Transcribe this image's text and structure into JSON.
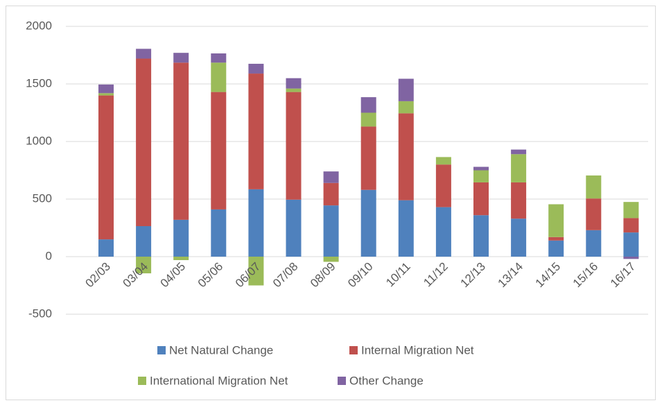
{
  "chart_data": {
    "type": "stacked-bar",
    "categories": [
      "02/03",
      "03/04",
      "04/05",
      "05/06",
      "06/07",
      "07/08",
      "08/09",
      "09/10",
      "10/11",
      "11/12",
      "12/13",
      "13/14",
      "14/15",
      "15/16",
      "16/17"
    ],
    "series": [
      {
        "name": "Net Natural Change",
        "color": "#4f81bd",
        "values": [
          150,
          265,
          320,
          410,
          585,
          495,
          445,
          580,
          490,
          430,
          360,
          330,
          140,
          230,
          210
        ]
      },
      {
        "name": "Internal Migration Net",
        "color": "#c0504d",
        "values": [
          1250,
          1455,
          1365,
          1020,
          1005,
          935,
          195,
          550,
          755,
          370,
          285,
          315,
          30,
          275,
          125
        ]
      },
      {
        "name": "International Migration Net",
        "color": "#9bbb59",
        "values": [
          20,
          -145,
          -30,
          255,
          -250,
          30,
          -45,
          120,
          105,
          65,
          105,
          245,
          285,
          200,
          140
        ]
      },
      {
        "name": "Other Change",
        "color": "#8064a2",
        "values": [
          75,
          85,
          85,
          80,
          85,
          90,
          100,
          135,
          195,
          0,
          30,
          40,
          0,
          0,
          -20
        ]
      }
    ],
    "ylim": [
      -500,
      2000
    ],
    "yticks": [
      -500,
      0,
      500,
      1000,
      1500,
      2000
    ],
    "grid": true
  }
}
